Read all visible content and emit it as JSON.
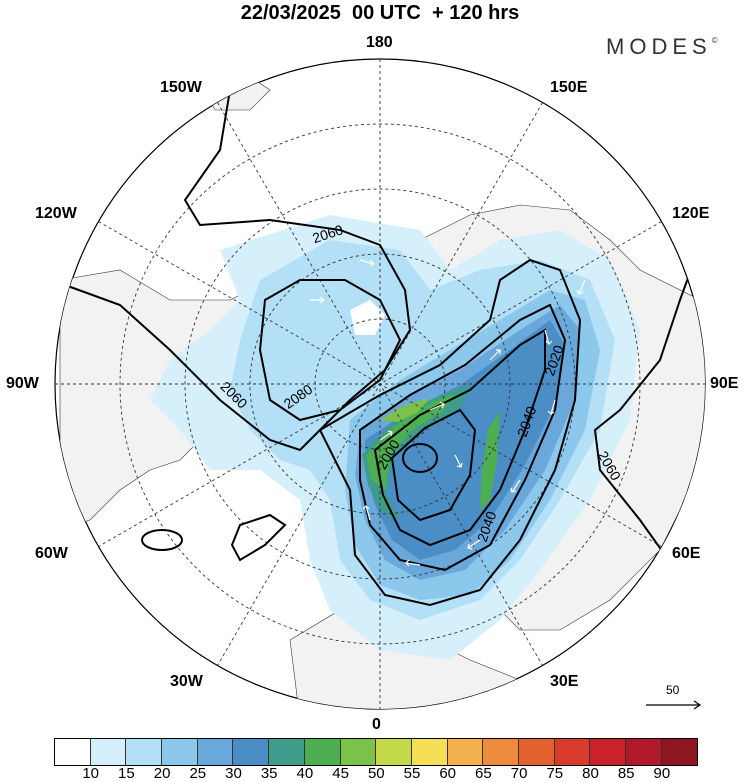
{
  "header": {
    "title": "22/03/2025  00 UTC  + 120 hrs",
    "brand": "MODES",
    "brand_mark": "©"
  },
  "longitude_labels": {
    "n180": "180",
    "w150": "150W",
    "e150": "150E",
    "w120": "120W",
    "e120": "120E",
    "w90": "90W",
    "e90": "90E",
    "w60": "60W",
    "e60": "60E",
    "w30": "30W",
    "e30": "30E",
    "s0": "0"
  },
  "contour_labels": [
    "2060",
    "2080",
    "2060",
    "2020",
    "2040",
    "2000",
    "2040",
    "2060"
  ],
  "vector_scale": {
    "value": "50"
  },
  "colorbar": {
    "colors": [
      "#ffffff",
      "#d5effb",
      "#b3e0f6",
      "#8cc7ec",
      "#6aa8dc",
      "#4b8ec6",
      "#3f9b8a",
      "#4caf50",
      "#7cc24a",
      "#c3d94a",
      "#f6de55",
      "#f4b14b",
      "#ee8a3b",
      "#e5602f",
      "#d83b2c",
      "#c9222a",
      "#b0192a",
      "#8e1622"
    ],
    "labels": [
      "10",
      "15",
      "20",
      "25",
      "30",
      "35",
      "40",
      "45",
      "50",
      "55",
      "60",
      "65",
      "70",
      "75",
      "80",
      "85",
      "90"
    ]
  }
}
